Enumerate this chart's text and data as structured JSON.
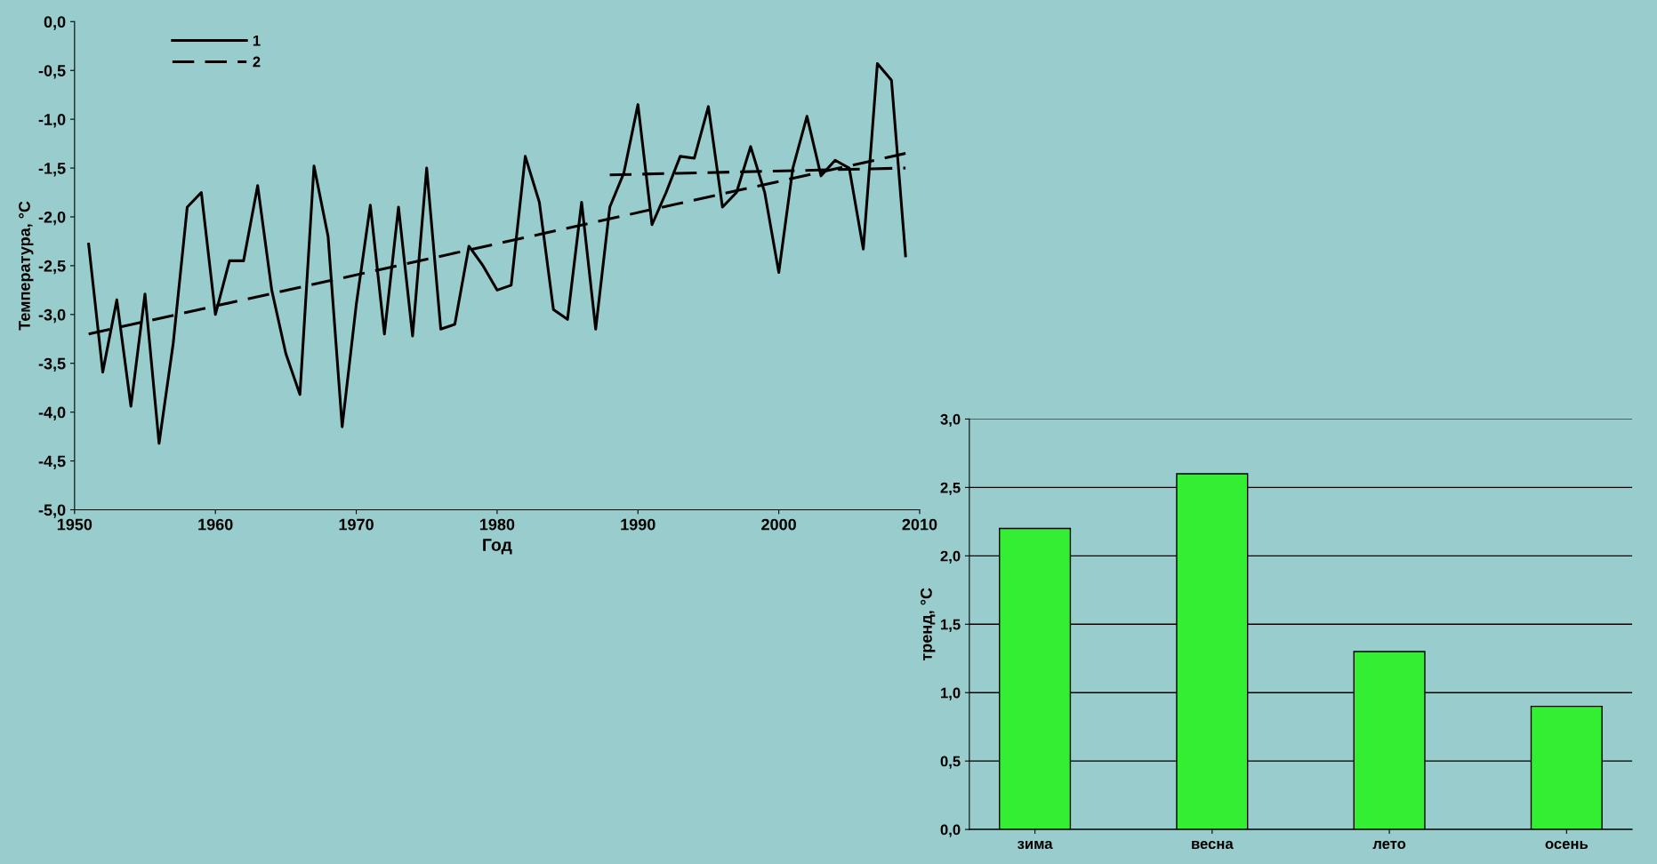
{
  "chart_data": [
    {
      "type": "line",
      "xlabel": "Год",
      "ylabel": "Температура, °С",
      "xlim": [
        1950,
        2010
      ],
      "xticks": [
        1950,
        1960,
        1970,
        1980,
        1990,
        2000,
        2010
      ],
      "ylim": [
        -5,
        0
      ],
      "yticks": [
        {
          "value": -5,
          "label": "-5,0"
        },
        {
          "value": -4.5,
          "label": "-4,5"
        },
        {
          "value": -4,
          "label": "-4,0"
        },
        {
          "value": -3.5,
          "label": "-3,5"
        },
        {
          "value": -3,
          "label": "-3,0"
        },
        {
          "value": -2.5,
          "label": "-2,5"
        },
        {
          "value": -2,
          "label": "-2,0"
        },
        {
          "value": -1.5,
          "label": "-1,5"
        },
        {
          "value": -1,
          "label": "-1,0"
        },
        {
          "value": -0.5,
          "label": "-0,5"
        },
        {
          "value": 0,
          "label": "0,0"
        }
      ],
      "x": [
        1951,
        1952,
        1953,
        1954,
        1955,
        1956,
        1957,
        1958,
        1959,
        1960,
        1961,
        1962,
        1963,
        1964,
        1965,
        1966,
        1967,
        1968,
        1969,
        1970,
        1971,
        1972,
        1973,
        1974,
        1975,
        1976,
        1977,
        1978,
        1979,
        1980,
        1981,
        1982,
        1983,
        1984,
        1985,
        1986,
        1987,
        1988,
        1989,
        1990,
        1991,
        1992,
        1993,
        1994,
        1995,
        1996,
        1997,
        1998,
        1999,
        2000,
        2001,
        2002,
        2003,
        2004,
        2005,
        2006,
        2007,
        2008,
        2009
      ],
      "series": [
        {
          "name": "1",
          "color": "#000000",
          "line_style": "solid",
          "values": [
            -2.28,
            -3.59,
            -2.85,
            -3.94,
            -2.79,
            -4.32,
            -3.3,
            -1.9,
            -1.75,
            -3.0,
            -2.45,
            -2.45,
            -1.68,
            -2.75,
            -3.4,
            -3.82,
            -1.48,
            -2.2,
            -4.15,
            -2.9,
            -1.88,
            -3.2,
            -1.9,
            -3.22,
            -1.5,
            -3.15,
            -3.1,
            -2.3,
            -2.5,
            -2.75,
            -2.7,
            -1.38,
            -1.85,
            -2.95,
            -3.05,
            -1.85,
            -3.15,
            -1.9,
            -1.55,
            -0.85,
            -2.08,
            -1.75,
            -1.38,
            -1.4,
            -0.87,
            -1.9,
            -1.75,
            -1.28,
            -1.75,
            -2.57,
            -1.5,
            -0.97,
            -1.58,
            -1.42,
            -1.5,
            -2.33,
            -0.43,
            -0.6,
            -2.4
          ]
        },
        {
          "name": "2",
          "color": "#000000",
          "line_style": "dashed",
          "x": [
            1951,
            2009
          ],
          "values": [
            -3.2,
            -1.35
          ]
        },
        {
          "color": "#000000",
          "line_style": "dashed",
          "x": [
            1988,
            2009
          ],
          "values": [
            -1.57,
            -1.5
          ]
        }
      ],
      "legend": "top left",
      "grid": false,
      "marker": "none"
    },
    {
      "type": "bar",
      "ylabel": "тренд, °С",
      "categories": [
        "зима",
        "весна",
        "лето",
        "осень"
      ],
      "values": [
        2.2,
        2.6,
        1.3,
        0.9
      ],
      "color": "#33ee33",
      "ylim": [
        0,
        3
      ],
      "yticks": [
        {
          "value": 0,
          "label": "0,0"
        },
        {
          "value": 0.5,
          "label": "0,5"
        },
        {
          "value": 1,
          "label": "1,0"
        },
        {
          "value": 1.5,
          "label": "1,5"
        },
        {
          "value": 2,
          "label": "2,0"
        },
        {
          "value": 2.5,
          "label": "2,5"
        },
        {
          "value": 3,
          "label": "3,0"
        }
      ],
      "grid": "y"
    }
  ]
}
